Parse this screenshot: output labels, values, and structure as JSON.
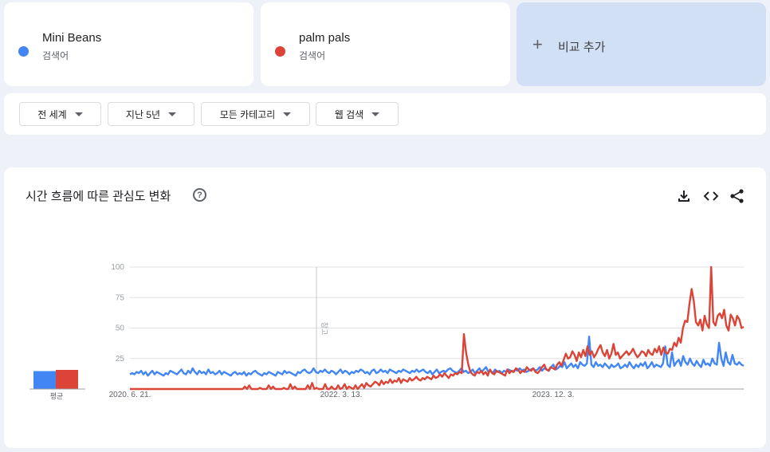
{
  "terms": [
    {
      "name": "Mini Beans",
      "type": "검색어",
      "color": "#4285f4"
    },
    {
      "name": "palm pals",
      "type": "검색어",
      "color": "#db4437"
    }
  ],
  "add_compare": {
    "icon": "plus-icon",
    "label": "비교 추가"
  },
  "filters": [
    {
      "label": "전 세계"
    },
    {
      "label": "지난 5년"
    },
    {
      "label": "모든 카테고리"
    },
    {
      "label": "웹 검색"
    }
  ],
  "chart_section": {
    "title": "시간 흐름에 따른 관심도 변화",
    "icons": [
      "help-icon",
      "download-icon",
      "embed-icon",
      "share-icon"
    ]
  },
  "chart_data": {
    "type": "line",
    "title": "",
    "ylim": [
      0,
      100
    ],
    "yticks": [
      25,
      50,
      75,
      100
    ],
    "xticks": [
      "2020. 6. 21.",
      "2022. 3. 13.",
      "2023. 12. 3."
    ],
    "marker_label": "참고",
    "average_label": "평균",
    "averages": [
      {
        "name": "Mini Beans",
        "value": 15
      },
      {
        "name": "palm pals",
        "value": 16
      }
    ],
    "series": [
      {
        "name": "Mini Beans",
        "values": [
          12,
          13,
          12,
          14,
          13,
          15,
          12,
          14,
          11,
          13,
          15,
          12,
          14,
          13,
          12,
          11,
          13,
          12,
          15,
          14,
          13,
          12,
          14,
          16,
          13,
          12,
          15,
          13,
          17,
          14,
          12,
          15,
          13,
          14,
          12,
          16,
          13,
          14,
          12,
          13,
          15,
          12,
          14,
          13,
          12,
          11,
          13,
          14,
          12,
          13,
          12,
          14,
          11,
          13,
          12,
          14,
          15,
          13,
          12,
          11,
          13,
          12,
          14,
          13,
          12,
          11,
          14,
          13,
          12,
          15,
          13,
          14,
          13,
          12,
          11,
          14,
          13,
          15,
          16,
          14,
          13,
          14,
          17,
          14,
          13,
          15,
          14,
          16,
          14,
          13,
          15,
          14,
          12,
          14,
          16,
          13,
          15,
          14,
          12,
          14,
          13,
          15,
          14,
          16,
          15,
          13,
          14,
          12,
          15,
          16,
          13,
          14,
          16,
          14,
          15,
          13,
          16,
          15,
          14,
          13,
          15,
          14,
          16,
          15,
          14,
          13,
          15,
          14,
          16,
          14,
          15,
          16,
          14,
          13,
          15,
          12,
          14,
          16,
          13,
          14,
          15,
          14,
          16,
          17,
          15,
          14,
          13,
          15,
          17,
          14,
          15,
          13,
          14,
          16,
          13,
          15,
          17,
          14,
          16,
          18,
          14,
          15,
          13,
          16,
          14,
          15,
          13,
          15,
          14,
          16,
          15,
          14,
          16,
          15,
          17,
          15,
          16,
          14,
          15,
          16,
          17,
          15,
          16,
          18,
          15,
          17,
          16,
          15,
          18,
          20,
          16,
          17,
          19,
          18,
          22,
          17,
          19,
          21,
          18,
          20,
          17,
          22,
          20,
          19,
          21,
          43,
          20,
          18,
          22,
          19,
          20,
          18,
          21,
          19,
          17,
          20,
          18,
          19,
          21,
          17,
          18,
          20,
          18,
          22,
          19,
          17,
          20,
          18,
          21,
          19,
          22,
          17,
          19,
          22,
          18,
          20,
          19,
          18,
          21,
          35,
          20,
          18,
          30,
          19,
          22,
          24,
          19,
          27,
          22,
          20,
          25,
          21,
          19,
          23,
          20,
          18,
          24,
          20,
          21,
          19,
          25,
          21,
          20,
          38,
          25,
          19,
          30,
          22,
          20,
          28,
          21,
          20,
          22,
          20,
          19
        ]
      },
      {
        "name": "palm pals",
        "values": [
          0,
          0,
          0,
          0,
          0,
          0,
          0,
          0,
          0,
          0,
          0,
          0,
          0,
          0,
          0,
          0,
          0,
          0,
          0,
          0,
          0,
          0,
          0,
          0,
          0,
          0,
          0,
          0,
          0,
          0,
          0,
          0,
          0,
          0,
          0,
          0,
          0,
          0,
          0,
          0,
          0,
          0,
          0,
          0,
          0,
          0,
          0,
          0,
          0,
          0,
          0,
          0,
          0,
          2,
          0,
          3,
          0,
          0,
          0,
          0,
          1,
          0,
          0,
          0,
          3,
          0,
          2,
          0,
          0,
          0,
          0,
          1,
          0,
          0,
          4,
          0,
          2,
          0,
          0,
          0,
          0,
          0,
          3,
          0,
          5,
          0,
          1,
          0,
          0,
          0,
          4,
          0,
          0,
          2,
          0,
          0,
          3,
          0,
          1,
          4,
          0,
          2,
          1,
          0,
          3,
          0,
          2,
          4,
          1,
          5,
          3,
          2,
          4,
          6,
          5,
          3,
          7,
          4,
          6,
          5,
          8,
          5,
          7,
          6,
          9,
          5,
          8,
          7,
          6,
          9,
          7,
          8,
          10,
          8,
          7,
          9,
          8,
          10,
          9,
          8,
          11,
          9,
          10,
          12,
          10,
          13,
          11,
          9,
          12,
          11,
          13,
          12,
          14,
          13,
          45,
          30,
          20,
          14,
          12,
          11,
          14,
          13,
          15,
          12,
          14,
          11,
          16,
          13,
          12,
          15,
          14,
          13,
          12,
          11,
          16,
          13,
          15,
          14,
          17,
          16,
          13,
          15,
          14,
          18,
          16,
          15,
          17,
          14,
          13,
          15,
          18,
          20,
          16,
          15,
          18,
          17,
          16,
          20,
          22,
          19,
          24,
          29,
          25,
          26,
          31,
          28,
          23,
          30,
          26,
          32,
          27,
          35,
          28,
          31,
          26,
          29,
          33,
          36,
          30,
          27,
          32,
          25,
          29,
          37,
          28,
          30,
          25,
          27,
          29,
          31,
          28,
          30,
          33,
          29,
          26,
          28,
          31,
          30,
          27,
          32,
          29,
          28,
          33,
          30,
          35,
          28,
          34,
          30,
          29,
          33,
          32,
          38,
          35,
          42,
          38,
          50,
          56,
          55,
          70,
          82,
          72,
          55,
          52,
          57,
          48,
          60,
          53,
          50,
          100,
          55,
          52,
          60,
          62,
          58,
          65,
          52,
          48,
          61,
          58,
          52,
          60,
          57,
          50,
          51
        ]
      }
    ]
  }
}
